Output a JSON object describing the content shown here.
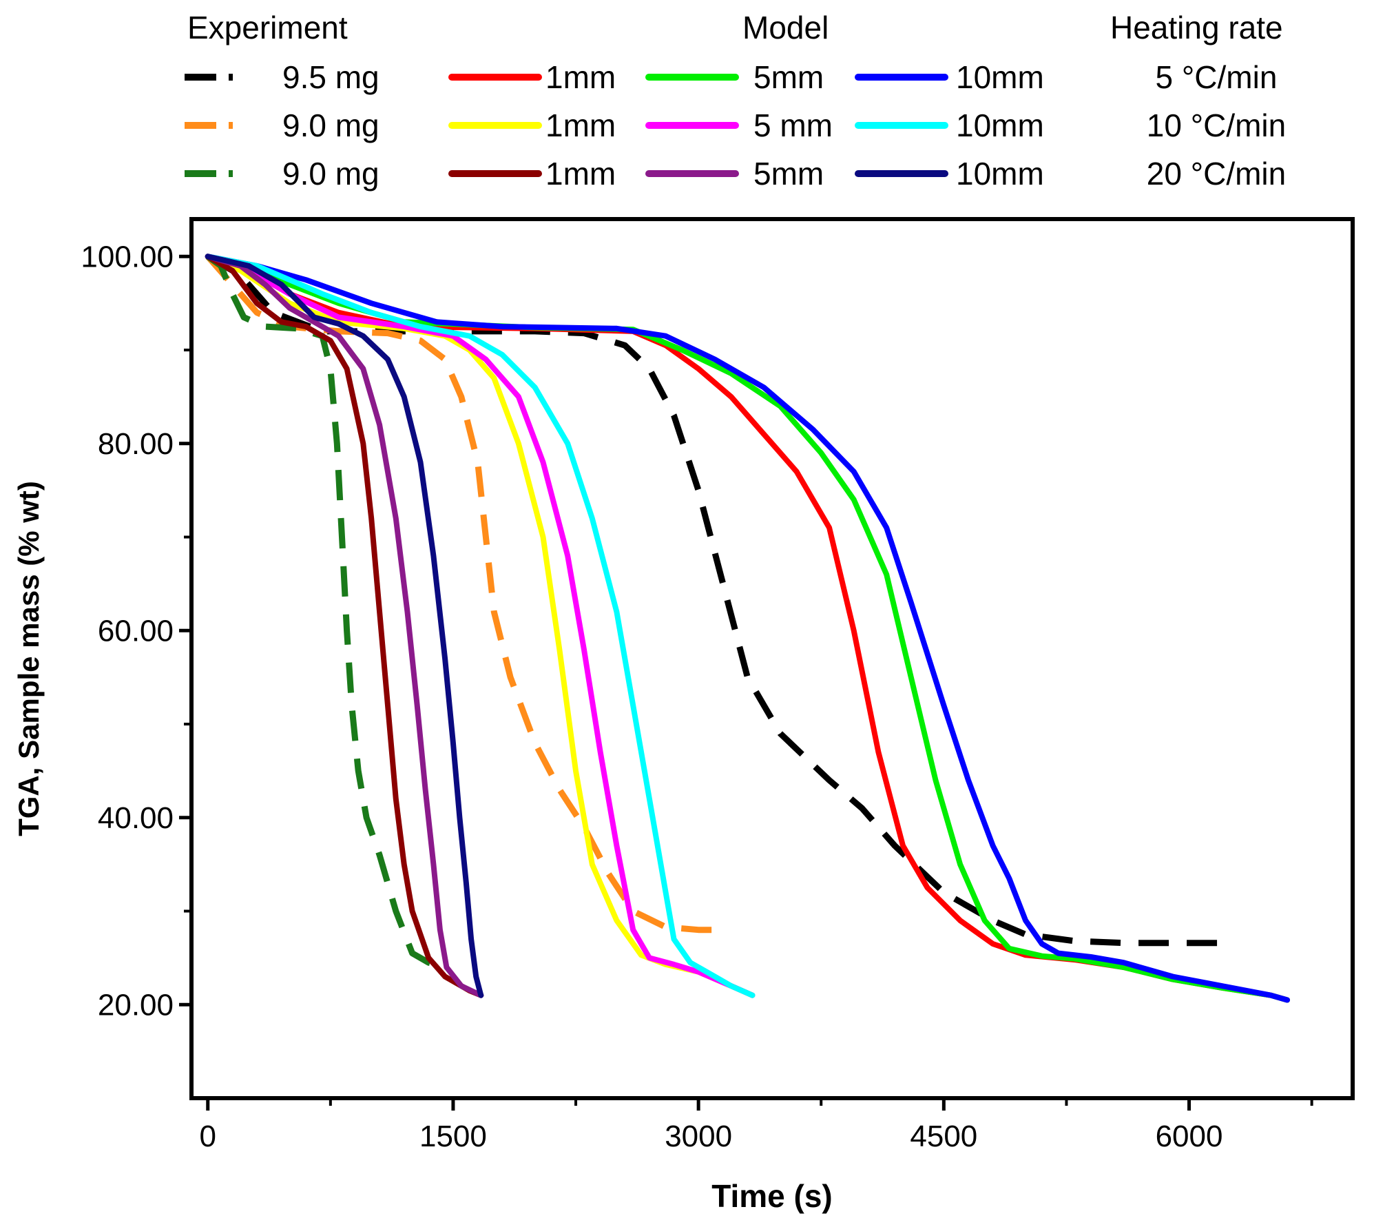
{
  "legend": {
    "header_experiment": "Experiment",
    "header_model": "Model",
    "header_rate": "Heating rate",
    "rows": [
      {
        "exp": "9.5 mg",
        "exp_color": "#000000",
        "m1": "1mm",
        "m1_color": "#ff0000",
        "m5": "5mm",
        "m5_color": "#00ee00",
        "m10": "10mm",
        "m10_color": "#0000ff",
        "rate": "5 °C/min"
      },
      {
        "exp": "9.0 mg",
        "exp_color": "#ff8c1a",
        "m1": "1mm",
        "m1_color": "#ffff00",
        "m5": "5 mm",
        "m5_color": "#ff00ff",
        "m10": "10mm",
        "m10_color": "#00ffff",
        "rate": "10 °C/min"
      },
      {
        "exp": "9.0 mg",
        "exp_color": "#1a7a1a",
        "m1": "1mm",
        "m1_color": "#8b0000",
        "m5": "5mm",
        "m5_color": "#8b1a8b",
        "m10": "10mm",
        "m10_color": "#0a0a80",
        "rate": "20 °C/min"
      }
    ]
  },
  "chart_data": {
    "type": "line",
    "xlabel": "Time (s)",
    "ylabel": "TGA, Sample mass (% wt)",
    "xlim": [
      -100,
      7000
    ],
    "ylim": [
      10,
      104
    ],
    "x_ticks": [
      0,
      1500,
      3000,
      4500,
      6000
    ],
    "x_tick_labels": [
      "0",
      "1500",
      "3000",
      "4500",
      "6000"
    ],
    "y_ticks": [
      20,
      40,
      60,
      80,
      100
    ],
    "y_tick_labels": [
      "20.00",
      "40.00",
      "60.00",
      "80.00",
      "100.00"
    ],
    "series": [
      {
        "name": "Experiment 9.5 mg (5 °C/min)",
        "color": "#000000",
        "dashed": true,
        "points": [
          [
            0,
            100
          ],
          [
            200,
            98
          ],
          [
            400,
            94
          ],
          [
            700,
            92
          ],
          [
            1500,
            92
          ],
          [
            2000,
            92
          ],
          [
            2300,
            91.8
          ],
          [
            2550,
            90.5
          ],
          [
            2700,
            88
          ],
          [
            2850,
            83
          ],
          [
            3000,
            75
          ],
          [
            3150,
            65
          ],
          [
            3300,
            55
          ],
          [
            3500,
            49
          ],
          [
            3800,
            44
          ],
          [
            4000,
            41
          ],
          [
            4200,
            37
          ],
          [
            4500,
            32
          ],
          [
            4800,
            29
          ],
          [
            5000,
            27.5
          ],
          [
            5300,
            26.8
          ],
          [
            5600,
            26.6
          ],
          [
            6000,
            26.6
          ],
          [
            6250,
            26.6
          ]
        ]
      },
      {
        "name": "Model 1mm (5 °C/min)",
        "color": "#ff0000",
        "dashed": false,
        "points": [
          [
            0,
            100
          ],
          [
            200,
            99
          ],
          [
            500,
            96
          ],
          [
            800,
            94
          ],
          [
            1200,
            92.5
          ],
          [
            2000,
            92.3
          ],
          [
            2600,
            92
          ],
          [
            2800,
            90.5
          ],
          [
            3000,
            88
          ],
          [
            3200,
            85
          ],
          [
            3400,
            81
          ],
          [
            3600,
            77
          ],
          [
            3800,
            71
          ],
          [
            3950,
            60
          ],
          [
            4100,
            47
          ],
          [
            4250,
            37
          ],
          [
            4400,
            32.5
          ],
          [
            4600,
            29
          ],
          [
            4800,
            26.5
          ],
          [
            5000,
            25.3
          ],
          [
            5300,
            24.8
          ],
          [
            5600,
            24
          ],
          [
            5900,
            22.7
          ],
          [
            6200,
            21.8
          ],
          [
            6500,
            21
          ],
          [
            6600,
            20.5
          ]
        ]
      },
      {
        "name": "Model 5mm (5 °C/min)",
        "color": "#00ee00",
        "dashed": false,
        "points": [
          [
            0,
            100
          ],
          [
            200,
            99
          ],
          [
            500,
            97
          ],
          [
            800,
            95
          ],
          [
            1200,
            93
          ],
          [
            2000,
            92.4
          ],
          [
            2600,
            92.2
          ],
          [
            2900,
            90
          ],
          [
            3200,
            87.5
          ],
          [
            3500,
            84
          ],
          [
            3750,
            79
          ],
          [
            3950,
            74
          ],
          [
            4150,
            66
          ],
          [
            4300,
            55
          ],
          [
            4450,
            44
          ],
          [
            4600,
            35
          ],
          [
            4750,
            29
          ],
          [
            4900,
            26
          ],
          [
            5100,
            25.2
          ],
          [
            5300,
            24.9
          ],
          [
            5600,
            24
          ],
          [
            5900,
            22.7
          ],
          [
            6200,
            21.8
          ],
          [
            6500,
            21
          ],
          [
            6600,
            20.5
          ]
        ]
      },
      {
        "name": "Model 10mm (5 °C/min)",
        "color": "#0000ff",
        "dashed": false,
        "points": [
          [
            0,
            100
          ],
          [
            300,
            99
          ],
          [
            600,
            97.5
          ],
          [
            1000,
            95
          ],
          [
            1400,
            93
          ],
          [
            1800,
            92.5
          ],
          [
            2500,
            92.3
          ],
          [
            2800,
            91.5
          ],
          [
            3100,
            89
          ],
          [
            3400,
            86
          ],
          [
            3700,
            81.5
          ],
          [
            3950,
            77
          ],
          [
            4150,
            71
          ],
          [
            4300,
            63
          ],
          [
            4500,
            52
          ],
          [
            4650,
            44
          ],
          [
            4800,
            37
          ],
          [
            4900,
            33.5
          ],
          [
            5000,
            29
          ],
          [
            5100,
            26.5
          ],
          [
            5200,
            25.5
          ],
          [
            5400,
            25.1
          ],
          [
            5600,
            24.5
          ],
          [
            5900,
            23
          ],
          [
            6200,
            22
          ],
          [
            6500,
            21
          ],
          [
            6600,
            20.5
          ]
        ]
      },
      {
        "name": "Experiment 9.0 mg (10 °C/min)",
        "color": "#ff8c1a",
        "dashed": true,
        "points": [
          [
            0,
            100
          ],
          [
            150,
            97
          ],
          [
            300,
            94
          ],
          [
            500,
            92.5
          ],
          [
            800,
            92
          ],
          [
            1100,
            91.8
          ],
          [
            1300,
            91
          ],
          [
            1450,
            89
          ],
          [
            1550,
            85
          ],
          [
            1650,
            78
          ],
          [
            1700,
            70
          ],
          [
            1750,
            62
          ],
          [
            1850,
            55
          ],
          [
            2000,
            48
          ],
          [
            2150,
            43
          ],
          [
            2300,
            39
          ],
          [
            2450,
            34
          ],
          [
            2600,
            30
          ],
          [
            2800,
            28.3
          ],
          [
            3000,
            28
          ],
          [
            3150,
            28
          ]
        ]
      },
      {
        "name": "Model 1mm (10 °C/min)",
        "color": "#ffff00",
        "dashed": false,
        "points": [
          [
            0,
            100
          ],
          [
            200,
            98.5
          ],
          [
            500,
            95
          ],
          [
            800,
            93
          ],
          [
            1200,
            92.3
          ],
          [
            1450,
            91.5
          ],
          [
            1600,
            90
          ],
          [
            1750,
            87
          ],
          [
            1900,
            80
          ],
          [
            2050,
            70
          ],
          [
            2150,
            58
          ],
          [
            2250,
            45
          ],
          [
            2350,
            35
          ],
          [
            2500,
            29
          ],
          [
            2650,
            25.3
          ],
          [
            2800,
            24.3
          ],
          [
            3000,
            23.5
          ],
          [
            3200,
            22
          ],
          [
            3330,
            21
          ]
        ]
      },
      {
        "name": "Model 5mm (10 °C/min)",
        "color": "#ff00ff",
        "dashed": false,
        "points": [
          [
            0,
            100
          ],
          [
            200,
            99
          ],
          [
            500,
            96
          ],
          [
            800,
            93.5
          ],
          [
            1200,
            92.5
          ],
          [
            1500,
            91.5
          ],
          [
            1700,
            89
          ],
          [
            1900,
            85
          ],
          [
            2050,
            78
          ],
          [
            2200,
            68
          ],
          [
            2300,
            58
          ],
          [
            2400,
            47
          ],
          [
            2500,
            37
          ],
          [
            2600,
            28
          ],
          [
            2700,
            25
          ],
          [
            2850,
            24.3
          ],
          [
            3000,
            23.5
          ],
          [
            3200,
            22
          ],
          [
            3330,
            21
          ]
        ]
      },
      {
        "name": "Model 10mm (10 °C/min)",
        "color": "#00ffff",
        "dashed": false,
        "points": [
          [
            0,
            100
          ],
          [
            300,
            99
          ],
          [
            700,
            96
          ],
          [
            1000,
            94
          ],
          [
            1300,
            92.5
          ],
          [
            1600,
            91.5
          ],
          [
            1800,
            89.5
          ],
          [
            2000,
            86
          ],
          [
            2200,
            80
          ],
          [
            2350,
            72
          ],
          [
            2500,
            62
          ],
          [
            2600,
            52
          ],
          [
            2700,
            42
          ],
          [
            2800,
            32
          ],
          [
            2850,
            27
          ],
          [
            2950,
            24.5
          ],
          [
            3100,
            23
          ],
          [
            3200,
            22
          ],
          [
            3330,
            21
          ]
        ]
      },
      {
        "name": "Experiment 9.0 mg (20 °C/min)",
        "color": "#1a7a1a",
        "dashed": true,
        "points": [
          [
            0,
            100
          ],
          [
            80,
            99
          ],
          [
            150,
            96
          ],
          [
            220,
            93.5
          ],
          [
            350,
            92.5
          ],
          [
            550,
            92.3
          ],
          [
            700,
            91.5
          ],
          [
            750,
            88
          ],
          [
            790,
            80
          ],
          [
            820,
            70
          ],
          [
            850,
            60
          ],
          [
            880,
            52
          ],
          [
            920,
            45
          ],
          [
            970,
            40
          ],
          [
            1050,
            36
          ],
          [
            1150,
            30
          ],
          [
            1250,
            25.5
          ],
          [
            1350,
            24.5
          ],
          [
            1450,
            24
          ]
        ]
      },
      {
        "name": "Model 1mm (20 °C/min)",
        "color": "#8b0000",
        "dashed": false,
        "points": [
          [
            0,
            100
          ],
          [
            150,
            98.5
          ],
          [
            300,
            95
          ],
          [
            450,
            93
          ],
          [
            600,
            92.5
          ],
          [
            750,
            91
          ],
          [
            850,
            88
          ],
          [
            950,
            80
          ],
          [
            1000,
            72
          ],
          [
            1050,
            62
          ],
          [
            1100,
            52
          ],
          [
            1150,
            42
          ],
          [
            1200,
            35
          ],
          [
            1250,
            30
          ],
          [
            1350,
            25
          ],
          [
            1450,
            23
          ],
          [
            1600,
            21.5
          ],
          [
            1670,
            21
          ]
        ]
      },
      {
        "name": "Model 5mm (20 °C/min)",
        "color": "#8b1a8b",
        "dashed": false,
        "points": [
          [
            0,
            100
          ],
          [
            200,
            99
          ],
          [
            350,
            97
          ],
          [
            500,
            94.5
          ],
          [
            650,
            93
          ],
          [
            800,
            91.5
          ],
          [
            950,
            88
          ],
          [
            1050,
            82
          ],
          [
            1150,
            72
          ],
          [
            1220,
            62
          ],
          [
            1280,
            52
          ],
          [
            1330,
            43
          ],
          [
            1380,
            35
          ],
          [
            1420,
            28
          ],
          [
            1460,
            24
          ],
          [
            1550,
            22
          ],
          [
            1670,
            21
          ]
        ]
      },
      {
        "name": "Model 10mm (20 °C/min)",
        "color": "#0a0a80",
        "dashed": false,
        "points": [
          [
            0,
            100
          ],
          [
            250,
            99
          ],
          [
            450,
            97
          ],
          [
            650,
            93.5
          ],
          [
            800,
            92.8
          ],
          [
            950,
            91.5
          ],
          [
            1100,
            89
          ],
          [
            1200,
            85
          ],
          [
            1300,
            78
          ],
          [
            1380,
            68
          ],
          [
            1450,
            57
          ],
          [
            1500,
            48
          ],
          [
            1540,
            40
          ],
          [
            1580,
            33
          ],
          [
            1610,
            27
          ],
          [
            1640,
            23
          ],
          [
            1670,
            21
          ]
        ]
      }
    ]
  }
}
